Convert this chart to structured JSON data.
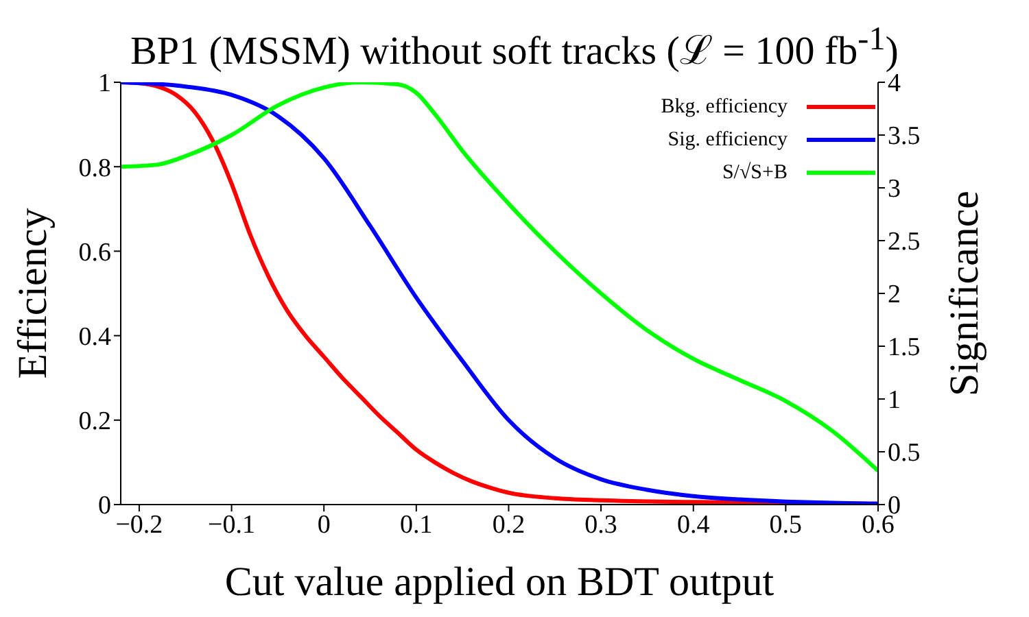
{
  "chart_data": {
    "type": "line",
    "title": "BP1 (MSSM) without soft tracks (ℒ = 100 fb$^{-1}$)",
    "xlabel": "Cut value applied on BDT output",
    "ylabel": "Efficiency",
    "y2label": "Significance",
    "xlim": [
      -0.22,
      0.6
    ],
    "xticks": [
      {
        "value": -0.2,
        "label": "−0.2"
      },
      {
        "value": -0.1,
        "label": "−0.1"
      },
      0,
      0.1,
      0.2,
      0.3,
      0.4,
      0.5,
      0.6
    ],
    "ylim": [
      0,
      1
    ],
    "yticks": [
      0,
      0.2,
      0.4,
      0.6,
      0.8,
      1
    ],
    "y2lim": [
      0,
      4
    ],
    "y2ticks": [
      0,
      0.5,
      1,
      1.5,
      2,
      2.5,
      3,
      3.5,
      4
    ],
    "grid": false,
    "legend": "top right",
    "marker": "none",
    "line_style": "solid",
    "series": [
      {
        "name": "Bkg. efficiency",
        "color": "#ff0000",
        "x": [
          -0.22,
          -0.2,
          -0.18,
          -0.16,
          -0.14,
          -0.12,
          -0.1,
          -0.08,
          -0.06,
          -0.04,
          -0.02,
          0,
          0.02,
          0.04,
          0.06,
          0.08,
          0.1,
          0.12,
          0.14,
          0.16,
          0.18,
          0.2,
          0.25,
          0.3,
          0.4,
          0.5,
          0.6
        ],
        "values": [
          1,
          0.998,
          0.99,
          0.97,
          0.93,
          0.86,
          0.76,
          0.64,
          0.54,
          0.46,
          0.4,
          0.35,
          0.3,
          0.255,
          0.21,
          0.17,
          0.13,
          0.1,
          0.075,
          0.055,
          0.04,
          0.028,
          0.015,
          0.01,
          0.006,
          0.004,
          0.002
        ]
      },
      {
        "name": "Sig. efficiency",
        "color": "#0000ff",
        "x": [
          -0.22,
          -0.15,
          -0.1,
          -0.05,
          0,
          0.05,
          0.1,
          0.15,
          0.2,
          0.25,
          0.3,
          0.35,
          0.4,
          0.45,
          0.5,
          0.55,
          0.6
        ],
        "values": [
          1,
          0.99,
          0.97,
          0.92,
          0.82,
          0.66,
          0.49,
          0.34,
          0.2,
          0.11,
          0.06,
          0.035,
          0.02,
          0.012,
          0.007,
          0.004,
          0.002
        ]
      },
      {
        "name": "S/√S+B",
        "color": "#00ff00",
        "axis": "y2",
        "x": [
          -0.22,
          -0.18,
          -0.15,
          -0.1,
          -0.05,
          0,
          0.04,
          0.08,
          0.1,
          0.12,
          0.15,
          0.2,
          0.25,
          0.3,
          0.35,
          0.4,
          0.45,
          0.5,
          0.55,
          0.6
        ],
        "values": [
          3.2,
          3.22,
          3.3,
          3.5,
          3.78,
          3.95,
          4,
          3.98,
          3.9,
          3.7,
          3.35,
          2.85,
          2.4,
          2,
          1.65,
          1.38,
          1.18,
          0.98,
          0.7,
          0.32
        ]
      }
    ]
  }
}
